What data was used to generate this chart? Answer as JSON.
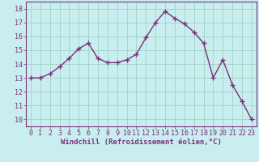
{
  "x": [
    0,
    1,
    2,
    3,
    4,
    5,
    6,
    7,
    8,
    9,
    10,
    11,
    12,
    13,
    14,
    15,
    16,
    17,
    18,
    19,
    20,
    21,
    22,
    23
  ],
  "y": [
    13.0,
    13.0,
    13.3,
    13.8,
    14.4,
    15.1,
    15.5,
    14.4,
    14.1,
    14.1,
    14.3,
    14.7,
    15.9,
    17.0,
    17.8,
    17.3,
    16.9,
    16.3,
    15.5,
    13.0,
    14.3,
    12.5,
    11.3,
    10.0
  ],
  "line_color": "#7B2F7B",
  "marker": "+",
  "marker_size": 4,
  "linewidth": 1.0,
  "bg_color": "#C8EEF0",
  "grid_color": "#99CCBB",
  "xlabel": "Windchill (Refroidissement éolien,°C)",
  "xlim": [
    -0.5,
    23.5
  ],
  "ylim": [
    9.5,
    18.5
  ],
  "yticks": [
    10,
    11,
    12,
    13,
    14,
    15,
    16,
    17,
    18
  ],
  "xticks": [
    0,
    1,
    2,
    3,
    4,
    5,
    6,
    7,
    8,
    9,
    10,
    11,
    12,
    13,
    14,
    15,
    16,
    17,
    18,
    19,
    20,
    21,
    22,
    23
  ],
  "xlabel_fontsize": 6.5,
  "tick_fontsize": 6.0,
  "tick_color": "#7B2F7B",
  "label_color": "#7B2F7B",
  "spine_color": "#7B2F7B"
}
